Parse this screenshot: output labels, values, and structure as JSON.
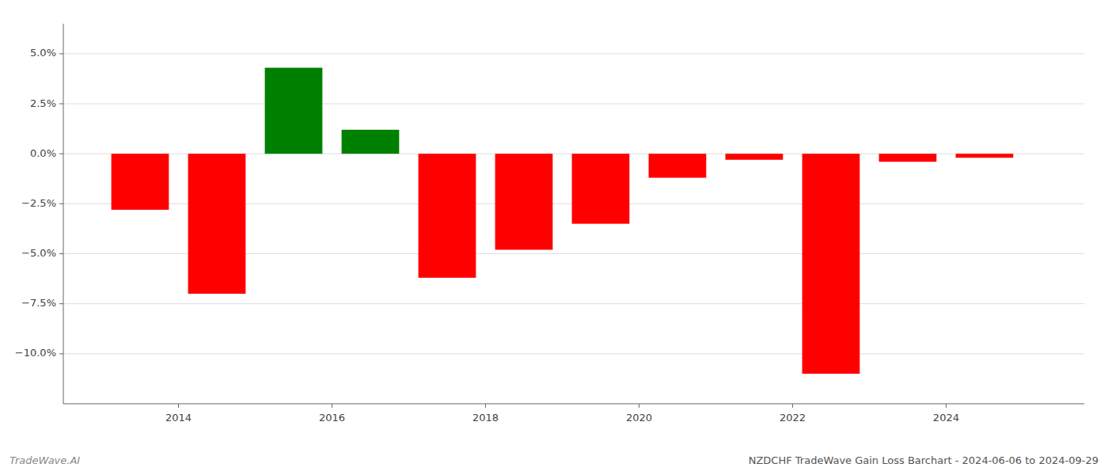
{
  "chart_data": {
    "type": "bar",
    "title": "NZDCHF TradeWave Gain Loss Barchart - 2024-06-06 to 2024-09-29",
    "annotations": [
      "TradeWave.AI"
    ],
    "x": [
      2013.5,
      2014.5,
      2015.5,
      2016.5,
      2017.5,
      2018.5,
      2019.5,
      2020.5,
      2021.5,
      2022.5,
      2023.5,
      2024.5
    ],
    "values": [
      -2.8,
      -7.0,
      4.3,
      1.2,
      -6.2,
      -4.8,
      -3.5,
      -1.2,
      -0.3,
      -11.0,
      -0.4,
      -0.2
    ],
    "colors": [
      "#ff0000",
      "#ff0000",
      "#008000",
      "#008000",
      "#ff0000",
      "#ff0000",
      "#ff0000",
      "#ff0000",
      "#ff0000",
      "#ff0000",
      "#ff0000",
      "#ff0000"
    ],
    "xlim": [
      2012.5,
      2025.8
    ],
    "xticks": [
      2014,
      2016,
      2018,
      2020,
      2022,
      2024
    ],
    "ylim": [
      -12.5,
      6.5
    ],
    "yticks": [
      {
        "value": -10.0,
        "label": "−10.0%"
      },
      {
        "value": -7.5,
        "label": "−7.5%"
      },
      {
        "value": -5.0,
        "label": "−5.0%"
      },
      {
        "value": -2.5,
        "label": "−2.5%"
      },
      {
        "value": 0.0,
        "label": "0.0%"
      },
      {
        "value": 2.5,
        "label": "2.5%"
      },
      {
        "value": 5.0,
        "label": "5.0%"
      }
    ],
    "grid": true
  }
}
